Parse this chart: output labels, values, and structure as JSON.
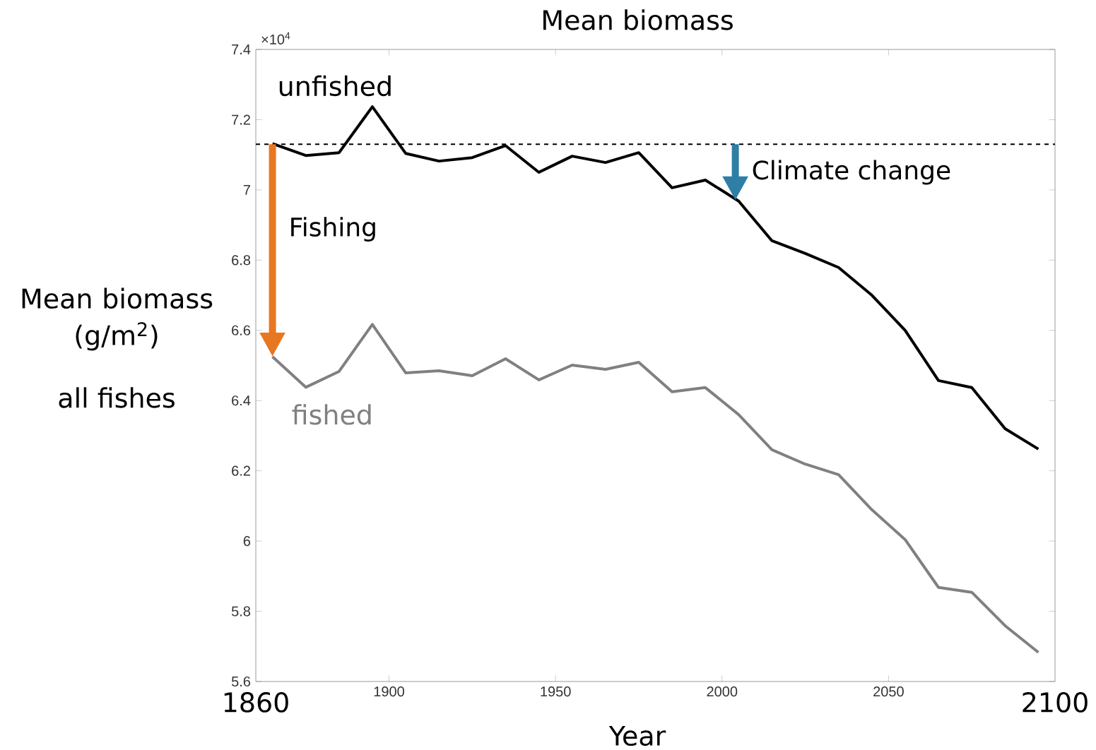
{
  "chart_data": {
    "type": "line",
    "title": "Mean biomass",
    "xlabel": "Year",
    "ylabel": "Mean biomass (g/m$^{2}$)",
    "x": [
      1865,
      1875,
      1885,
      1895,
      1905,
      1915,
      1925,
      1935,
      1945,
      1955,
      1965,
      1975,
      1985,
      1995,
      2005,
      2015,
      2025,
      2035,
      2045,
      2055,
      2065,
      2075,
      2085,
      2095
    ],
    "series": [
      {
        "name": "unfished",
        "color": "#000000",
        "values": [
          7.132,
          7.098,
          7.106,
          7.237,
          7.104,
          7.082,
          7.092,
          7.126,
          7.05,
          7.096,
          7.078,
          7.106,
          7.006,
          7.028,
          6.968,
          6.855,
          6.819,
          6.779,
          6.7,
          6.6,
          6.457,
          6.437,
          6.32,
          6.262
        ]
      },
      {
        "name": "fished",
        "color": "#808080",
        "values": [
          6.525,
          6.438,
          6.483,
          6.617,
          6.479,
          6.485,
          6.471,
          6.519,
          6.459,
          6.501,
          6.489,
          6.509,
          6.425,
          6.437,
          6.36,
          6.26,
          6.219,
          6.189,
          6.089,
          6.004,
          5.868,
          5.854,
          5.759,
          5.683
        ]
      }
    ],
    "xlim": [
      1860,
      2100
    ],
    "ylim": [
      5.6,
      7.4
    ],
    "xticks": [
      1900,
      1950,
      2000,
      2050
    ],
    "yticks": [
      5.6,
      5.8,
      6,
      6.2,
      6.4,
      6.6,
      6.8,
      7,
      7.2,
      7.4
    ],
    "ref_lines": [
      {
        "axis": "y",
        "value": 7.13,
        "color": "#000000",
        "line_style": "dashed"
      }
    ],
    "annotations": [
      "×10$^{4}$",
      "all fishes",
      "Fishing",
      "1860",
      "2100",
      {
        "text": "Climate change",
        "x": 2004,
        "y": 6.97
      }
    ],
    "grid": false
  }
}
